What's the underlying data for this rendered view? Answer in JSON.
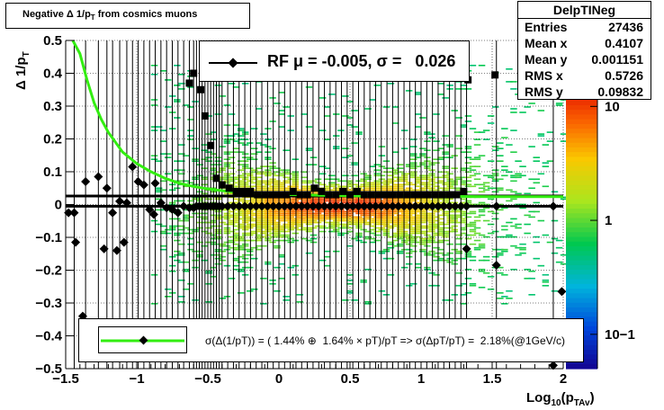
{
  "title": {
    "main": "Negative",
    "delta": "Δ",
    "text": "1/p",
    "sub": "T",
    "suffix": "from cosmics muons"
  },
  "stats": {
    "name": "DelpTINeg",
    "rows": [
      {
        "label": "Entries",
        "value": "27436"
      },
      {
        "label": "Mean x",
        "value": "0.4107"
      },
      {
        "label": "Mean y",
        "value": "0.001151"
      },
      {
        "label": "RMS x",
        "value": "0.5726"
      },
      {
        "label": "RMS y",
        "value": "0.09832"
      }
    ]
  },
  "fit_legend": {
    "label": "RF μ = -0.005, σ =   0.026"
  },
  "res_legend": {
    "label": "σ(Δ(1/pT)) = ( 1.44% ⊕  1.64% × pT)/pT => σ(ΔpT/pT) =  2.18%(@1GeV/c)"
  },
  "axis": {
    "xlabel_main": "Log",
    "xlabel_sub1": "10",
    "xlabel_mid": "(p",
    "xlabel_sub2": "TAv",
    "xlabel_end": ")",
    "ylabel_main": "Δ 1/p",
    "ylabel_sub": "T"
  },
  "colors": {
    "fit_curve": "#33ee11",
    "markers": "#000000",
    "errorbars": "#000000"
  },
  "chart_data": {
    "type": "heatmap",
    "xlim": [
      -1.5,
      2.0
    ],
    "ylim": [
      -0.5,
      0.5
    ],
    "xticks": [
      -1.5,
      -1,
      -0.5,
      0,
      0.5,
      1,
      1.5,
      2
    ],
    "xticklabels": [
      "−1.5",
      "−1",
      "−0.5",
      "0",
      "0.5",
      "1",
      "1.5",
      "2"
    ],
    "yticks": [
      -0.5,
      -0.4,
      -0.3,
      -0.2,
      -0.1,
      0,
      0.1,
      0.2,
      0.3,
      0.4,
      0.5
    ],
    "yticklabels": [
      "−0.5",
      "−0.4",
      "−0.3",
      "−0.2",
      "−0.1",
      "0",
      "0.1",
      "0.2",
      "0.3",
      "0.4",
      "0.5"
    ],
    "grid": true,
    "colorbar": {
      "log": true,
      "range": [
        0.05,
        15
      ],
      "ticks": [
        {
          "v": 10,
          "label": "10"
        },
        {
          "v": 1,
          "label": "1"
        },
        {
          "v": 0.1,
          "label": "10−1"
        }
      ]
    },
    "series": [
      {
        "name": "mean",
        "x": [
          -1.44,
          -1.36,
          -1.27,
          -1.21,
          -1.17,
          -1.12,
          -1.07,
          -1.03,
          -0.99,
          -0.95,
          -0.91,
          -0.87,
          -0.83,
          -0.79,
          -0.75,
          -0.71,
          -0.67,
          -0.63,
          -0.6,
          -0.58,
          -0.56,
          -0.54,
          -0.52,
          -0.5,
          -0.48,
          -0.46,
          -0.44,
          -0.42,
          -0.4,
          -0.36,
          -0.32,
          -0.28,
          -0.24,
          -0.2,
          -0.16,
          -0.12,
          -0.08,
          -0.04,
          0.0,
          0.04,
          0.08,
          0.12,
          0.16,
          0.2,
          0.24,
          0.28,
          0.32,
          0.36,
          0.4,
          0.44,
          0.48,
          0.52,
          0.56,
          0.6,
          0.64,
          0.68,
          0.72,
          0.76,
          0.8,
          0.84,
          0.88,
          0.92,
          0.96,
          1.0,
          1.04,
          1.08,
          1.12,
          1.16,
          1.2,
          1.24,
          1.28,
          1.32,
          1.53,
          1.93
        ],
        "y": [
          -0.025,
          0.07,
          0.085,
          0.05,
          -0.025,
          0.01,
          0.005,
          0.115,
          0.07,
          0.06,
          -0.015,
          0.065,
          0.005,
          -0.01,
          -0.015,
          -0.025,
          -0.005,
          -0.01,
          -0.01,
          -0.005,
          -0.005,
          -0.005,
          -0.005,
          -0.005,
          -0.005,
          -0.005,
          -0.005,
          -0.005,
          -0.005,
          -0.005,
          -0.005,
          -0.005,
          -0.005,
          -0.005,
          -0.005,
          -0.005,
          -0.005,
          -0.005,
          -0.005,
          -0.005,
          -0.005,
          -0.005,
          -0.005,
          -0.005,
          -0.005,
          -0.005,
          -0.005,
          -0.005,
          -0.005,
          -0.005,
          -0.005,
          -0.005,
          -0.005,
          -0.005,
          -0.005,
          -0.005,
          -0.005,
          -0.005,
          -0.005,
          -0.005,
          -0.005,
          -0.005,
          -0.005,
          -0.005,
          -0.005,
          -0.005,
          -0.005,
          -0.005,
          -0.005,
          -0.005,
          -0.005,
          -0.005,
          -0.005,
          -0.005
        ]
      },
      {
        "name": "rms",
        "x": [
          -0.63,
          -0.6,
          -0.55,
          -0.52,
          -0.48,
          -0.44,
          -0.4,
          -0.35,
          -0.3,
          -0.25,
          -0.2,
          -0.15,
          -0.1,
          -0.05,
          0.0,
          0.05,
          0.1,
          0.15,
          0.2,
          0.25,
          0.3,
          0.35,
          0.4,
          0.45,
          0.5,
          0.55,
          0.6,
          0.65,
          0.7,
          0.75,
          0.8,
          0.85,
          0.9,
          0.95,
          1.0,
          1.05,
          1.1,
          1.15,
          1.2,
          1.25,
          1.3,
          1.33,
          1.52
        ],
        "y": [
          0.37,
          0.4,
          0.35,
          0.27,
          0.18,
          0.08,
          0.06,
          0.05,
          0.04,
          0.04,
          0.04,
          0.03,
          0.03,
          0.03,
          0.03,
          0.03,
          0.04,
          0.03,
          0.03,
          0.05,
          0.04,
          0.03,
          0.03,
          0.04,
          0.03,
          0.04,
          0.03,
          0.03,
          0.03,
          0.03,
          0.03,
          0.03,
          0.03,
          0.03,
          0.03,
          0.03,
          0.03,
          0.03,
          0.03,
          0.03,
          0.04,
          0.38,
          0.395
        ]
      },
      {
        "name": "low",
        "x": [
          -1.48,
          -1.43,
          -1.38,
          -1.23,
          -1.14,
          -1.09,
          -0.88,
          1.32,
          1.53,
          1.93,
          1.99
        ],
        "y": [
          -0.025,
          -0.115,
          -0.34,
          -0.135,
          -0.14,
          -0.115,
          -0.03,
          -0.135,
          -0.185,
          -0.49,
          -0.265
        ]
      },
      {
        "name": "fit",
        "x": [
          -1.45,
          -1.4,
          -1.35,
          -1.3,
          -1.25,
          -1.2,
          -1.1,
          -1.0,
          -0.9,
          -0.8,
          -0.7,
          -0.6,
          -0.5,
          -0.4,
          -0.3,
          -0.2,
          0.0,
          0.3,
          0.6,
          1.0,
          1.5,
          2.0
        ],
        "y": [
          0.5,
          0.46,
          0.38,
          0.31,
          0.26,
          0.22,
          0.16,
          0.125,
          0.1,
          0.08,
          0.065,
          0.055,
          0.048,
          0.042,
          0.038,
          0.035,
          0.031,
          0.028,
          0.026,
          0.025,
          0.024,
          0.024
        ]
      }
    ],
    "hlines": [
      0.026,
      -0.005
    ]
  }
}
